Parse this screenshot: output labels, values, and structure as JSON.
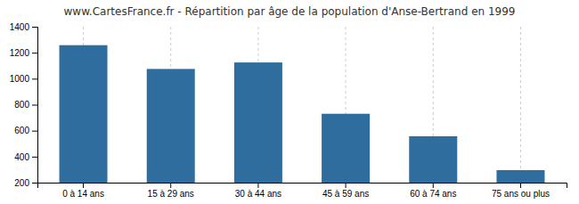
{
  "chart_data": {
    "type": "bar",
    "title": "www.CartesFrance.fr - Répartition par âge de la population d'Anse-Bertrand en 1999",
    "categories": [
      "0 à 14 ans",
      "15 à 29 ans",
      "30 à 44 ans",
      "45 à 59 ans",
      "60 à 74 ans",
      "75 ans ou plus"
    ],
    "values": [
      1258,
      1075,
      1125,
      730,
      557,
      296
    ],
    "color": "#2e6d9e",
    "ylim": [
      200,
      1400
    ],
    "yticks": [
      200,
      400,
      600,
      800,
      1000,
      1200,
      1400
    ],
    "grid": true
  }
}
